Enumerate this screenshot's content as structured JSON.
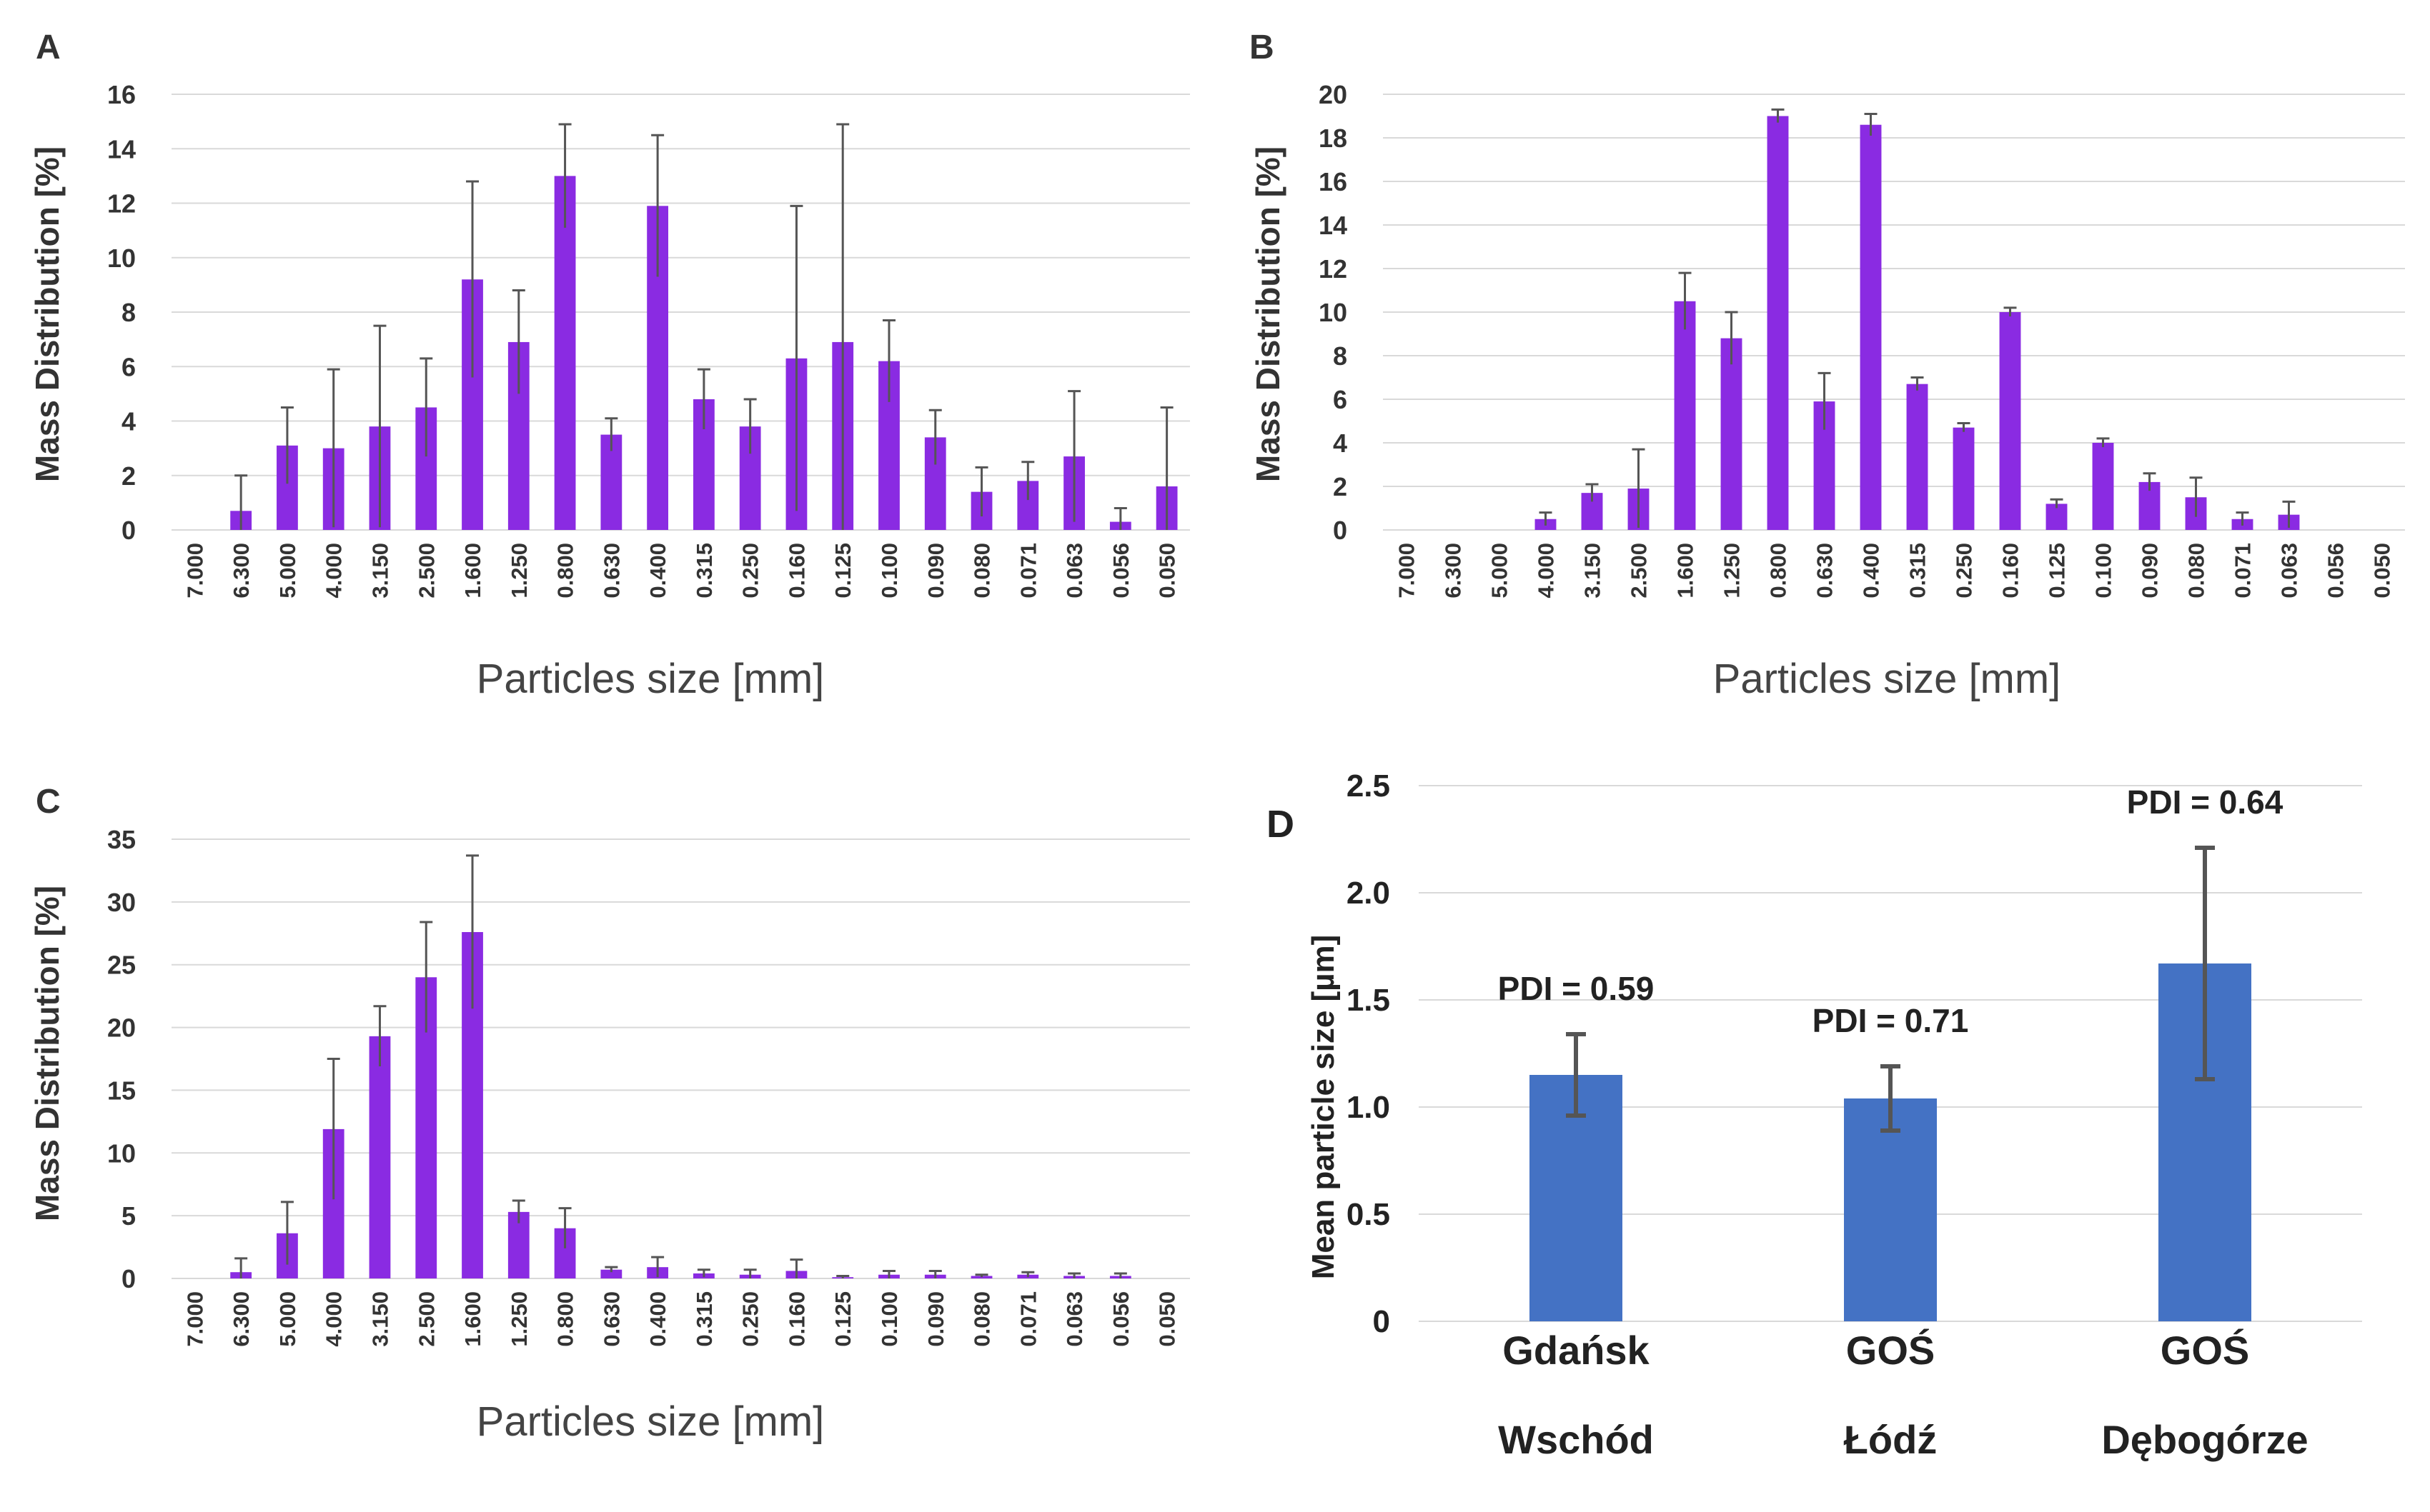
{
  "figure": {
    "colors": {
      "purple_bar": "#8A2BE2",
      "blue_bar": "#4472C4",
      "grid": "#d9d9d9",
      "error_bar": "#555555",
      "text": "#333333"
    }
  },
  "chart_data": [
    {
      "panel": "A",
      "type": "bar",
      "title": "",
      "xlabel": "Particles size [mm]",
      "ylabel": "Mass Distribution [%]",
      "ylim": [
        0,
        16
      ],
      "yticks": [
        0,
        2,
        4,
        6,
        8,
        10,
        12,
        14,
        16
      ],
      "grid": true,
      "categories": [
        "7.000",
        "6.300",
        "5.000",
        "4.000",
        "3.150",
        "2.500",
        "1.600",
        "1.250",
        "0.800",
        "0.630",
        "0.400",
        "0.315",
        "0.250",
        "0.160",
        "0.125",
        "0.100",
        "0.090",
        "0.080",
        "0.071",
        "0.063",
        "0.056",
        "0.050"
      ],
      "values": [
        0,
        0.7,
        3.1,
        3.0,
        3.8,
        4.5,
        9.2,
        6.9,
        13.0,
        3.5,
        11.9,
        4.8,
        3.8,
        6.3,
        6.9,
        6.2,
        3.4,
        1.4,
        1.8,
        2.7,
        0.3,
        1.6
      ],
      "errors": [
        0,
        1.3,
        1.4,
        2.9,
        3.7,
        1.8,
        3.6,
        1.9,
        1.9,
        0.6,
        2.6,
        1.1,
        1.0,
        5.6,
        8.0,
        1.5,
        1.0,
        0.9,
        0.7,
        2.4,
        0.5,
        2.9
      ]
    },
    {
      "panel": "B",
      "type": "bar",
      "title": "",
      "xlabel": "Particles size [mm]",
      "ylabel": "Mass Distribution [%]",
      "ylim": [
        0,
        20
      ],
      "yticks": [
        0,
        2,
        4,
        6,
        8,
        10,
        12,
        14,
        16,
        18,
        20
      ],
      "grid": true,
      "categories": [
        "7.000",
        "6.300",
        "5.000",
        "4.000",
        "3.150",
        "2.500",
        "1.600",
        "1.250",
        "0.800",
        "0.630",
        "0.400",
        "0.315",
        "0.250",
        "0.160",
        "0.125",
        "0.100",
        "0.090",
        "0.080",
        "0.071",
        "0.063",
        "0.056",
        "0.050"
      ],
      "values": [
        0,
        0,
        0,
        0.5,
        1.7,
        1.9,
        10.5,
        8.8,
        19.0,
        5.9,
        18.6,
        6.7,
        4.7,
        10.0,
        1.2,
        4.0,
        2.2,
        1.5,
        0.5,
        0.7,
        0,
        0
      ],
      "errors": [
        0,
        0,
        0,
        0.3,
        0.4,
        1.8,
        1.3,
        1.2,
        0.3,
        1.3,
        0.5,
        0.3,
        0.2,
        0.2,
        0.2,
        0.2,
        0.4,
        0.9,
        0.3,
        0.6,
        0,
        0
      ]
    },
    {
      "panel": "C",
      "type": "bar",
      "title": "",
      "xlabel": "Particles size [mm]",
      "ylabel": "Mass Distribution [%]",
      "ylim": [
        0,
        35
      ],
      "yticks": [
        0,
        5,
        10,
        15,
        20,
        25,
        30,
        35
      ],
      "grid": true,
      "categories": [
        "7.000",
        "6.300",
        "5.000",
        "4.000",
        "3.150",
        "2.500",
        "1.600",
        "1.250",
        "0.800",
        "0.630",
        "0.400",
        "0.315",
        "0.250",
        "0.160",
        "0.125",
        "0.100",
        "0.090",
        "0.080",
        "0.071",
        "0.063",
        "0.056",
        "0.050"
      ],
      "values": [
        0,
        0.5,
        3.6,
        11.9,
        19.3,
        24.0,
        27.6,
        5.3,
        4.0,
        0.7,
        0.9,
        0.4,
        0.3,
        0.6,
        0.1,
        0.3,
        0.3,
        0.2,
        0.3,
        0.2,
        0.2,
        0
      ],
      "errors": [
        0,
        1.1,
        2.5,
        5.6,
        2.4,
        4.4,
        6.1,
        0.9,
        1.6,
        0.2,
        0.8,
        0.3,
        0.4,
        0.9,
        0.1,
        0.3,
        0.3,
        0.1,
        0.2,
        0.2,
        0.2,
        0
      ]
    },
    {
      "panel": "D",
      "type": "bar",
      "title": "",
      "xlabel": "",
      "ylabel": "Mean particle size [µm]",
      "ylim": [
        0,
        2.5
      ],
      "yticks": [
        "0",
        "0.5",
        "1.0",
        "1.5",
        "2.0",
        "2.5"
      ],
      "grid": true,
      "categories": [
        [
          "Gdańsk",
          "Wschód"
        ],
        [
          "GOŚ",
          "Łódź"
        ],
        [
          "GOŚ",
          "Dębogórze"
        ]
      ],
      "values": [
        1.15,
        1.04,
        1.67
      ],
      "errors": [
        0.19,
        0.15,
        0.54
      ],
      "annotations": [
        "PDI = 0.59",
        "PDI = 0.71",
        "PDI = 0.64"
      ]
    }
  ]
}
